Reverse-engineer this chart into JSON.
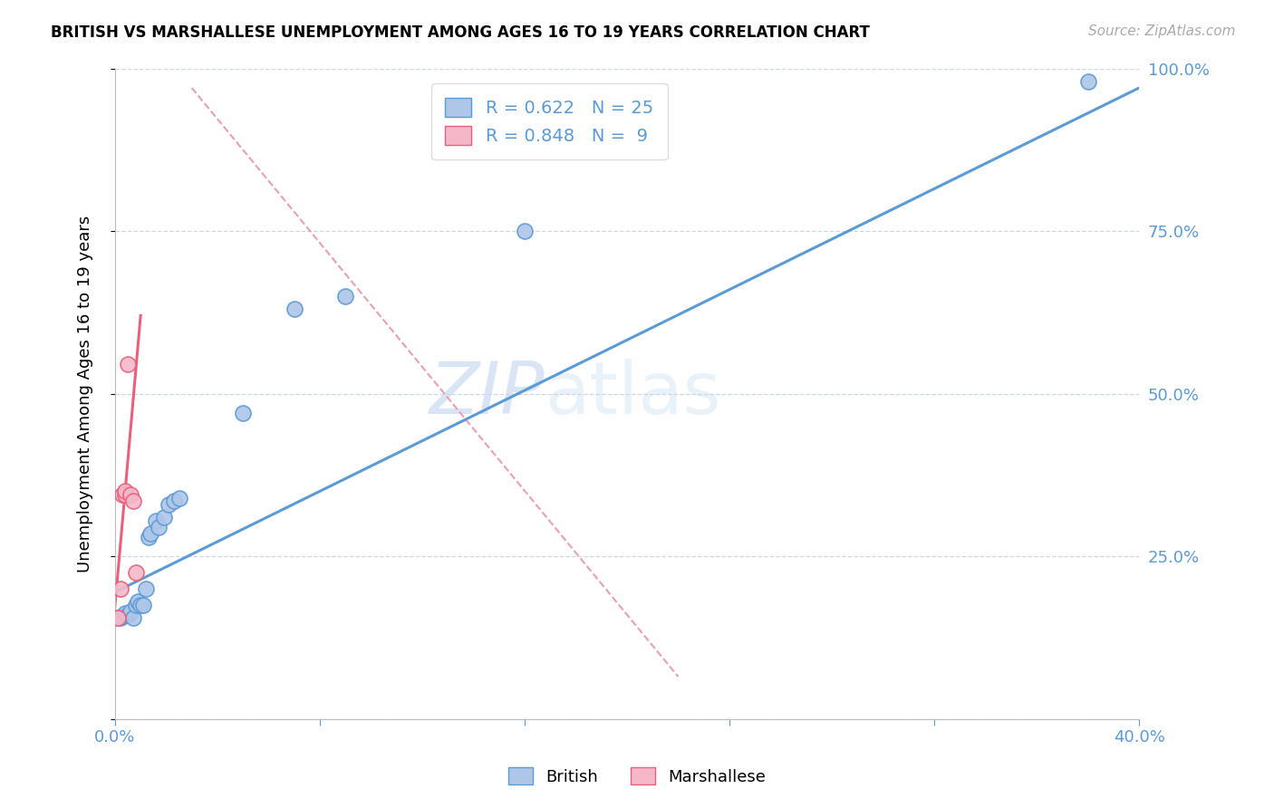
{
  "title": "BRITISH VS MARSHALLESE UNEMPLOYMENT AMONG AGES 16 TO 19 YEARS CORRELATION CHART",
  "source": "Source: ZipAtlas.com",
  "ylabel_label": "Unemployment Among Ages 16 to 19 years",
  "xlim": [
    0.0,
    0.4
  ],
  "ylim": [
    0.0,
    1.0
  ],
  "xtick_positions": [
    0.0,
    0.08,
    0.16,
    0.24,
    0.32,
    0.4
  ],
  "xtick_labels": [
    "0.0%",
    "",
    "",
    "",
    "",
    "40.0%"
  ],
  "ytick_positions": [
    0.0,
    0.25,
    0.5,
    0.75,
    1.0
  ],
  "ytick_labels": [
    "",
    "25.0%",
    "50.0%",
    "75.0%",
    "100.0%"
  ],
  "british_R": 0.622,
  "british_N": 25,
  "marshallese_R": 0.848,
  "marshallese_N": 9,
  "british_color": "#aec6e8",
  "marshallese_color": "#f5b8c8",
  "british_line_color": "#5b9bd5",
  "marshallese_line_color": "#e8607a",
  "ref_line_color": "#e8a0b0",
  "axis_color": "#5b9bd5",
  "grid_color": "#c8d8e8",
  "watermark_zip": "ZIP",
  "watermark_atlas": "atlas",
  "british_x": [
    0.001,
    0.002,
    0.003,
    0.004,
    0.005,
    0.006,
    0.007,
    0.008,
    0.009,
    0.01,
    0.011,
    0.012,
    0.013,
    0.014,
    0.016,
    0.017,
    0.019,
    0.021,
    0.023,
    0.025,
    0.05,
    0.07,
    0.09,
    0.16,
    0.38
  ],
  "british_y": [
    0.155,
    0.155,
    0.158,
    0.162,
    0.16,
    0.165,
    0.155,
    0.175,
    0.18,
    0.175,
    0.175,
    0.2,
    0.28,
    0.285,
    0.305,
    0.295,
    0.31,
    0.33,
    0.335,
    0.34,
    0.47,
    0.63,
    0.65,
    0.75,
    0.98
  ],
  "marshallese_x": [
    0.001,
    0.002,
    0.003,
    0.004,
    0.004,
    0.005,
    0.006,
    0.007,
    0.008
  ],
  "marshallese_y": [
    0.155,
    0.2,
    0.345,
    0.345,
    0.35,
    0.545,
    0.345,
    0.335,
    0.225
  ],
  "british_line_x": [
    0.0,
    0.4
  ],
  "british_line_y": [
    0.195,
    0.97
  ],
  "marshallese_line_x": [
    -0.003,
    0.01
  ],
  "marshallese_line_y": [
    0.04,
    0.62
  ],
  "ref_line_x": [
    0.03,
    0.22
  ],
  "ref_line_y": [
    0.97,
    0.065
  ]
}
